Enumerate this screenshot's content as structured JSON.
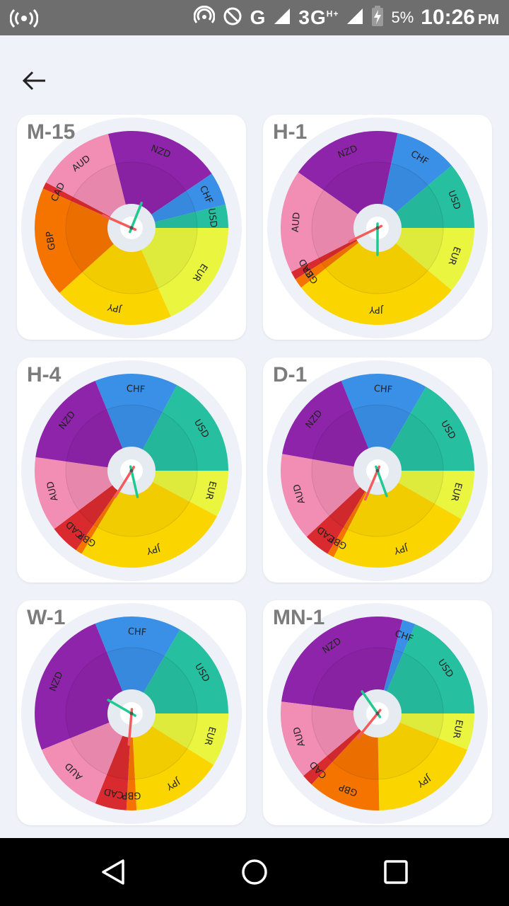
{
  "status_bar": {
    "network_type": "G",
    "data_type": "3G",
    "data_sup": "H+",
    "battery": "5%",
    "time": "10:26",
    "ampm": "PM"
  },
  "colors": {
    "NZD": "#8e24aa",
    "CHF": "#3a8fe6",
    "USD": "#26bfa0",
    "EUR": "#e9f53f",
    "JPY": "#fbd500",
    "GBP": "#f57400",
    "CAD": "#d82a2f",
    "AUD": "#f28db4"
  },
  "cards": [
    {
      "title": "M-15",
      "segments": [
        {
          "currency": "NZD",
          "start": 346,
          "end": 56
        },
        {
          "currency": "CHF",
          "start": 56,
          "end": 76
        },
        {
          "currency": "USD",
          "start": 76,
          "end": 90
        },
        {
          "currency": "EUR",
          "start": 90,
          "end": 156
        },
        {
          "currency": "JPY",
          "start": 156,
          "end": 228
        },
        {
          "currency": "GBP",
          "start": 228,
          "end": 294
        },
        {
          "currency": "CAD",
          "start": 294,
          "end": 298
        },
        {
          "currency": "AUD",
          "start": 298,
          "end": 346
        }
      ],
      "needle_green": 22,
      "needle_red": 294
    },
    {
      "title": "H-1",
      "segments": [
        {
          "currency": "NZD",
          "start": 305,
          "end": 12
        },
        {
          "currency": "CHF",
          "start": 12,
          "end": 50
        },
        {
          "currency": "USD",
          "start": 50,
          "end": 90
        },
        {
          "currency": "EUR",
          "start": 90,
          "end": 130
        },
        {
          "currency": "JPY",
          "start": 130,
          "end": 232
        },
        {
          "currency": "GBP",
          "start": 232,
          "end": 238
        },
        {
          "currency": "CAD",
          "start": 238,
          "end": 243
        },
        {
          "currency": "AUD",
          "start": 243,
          "end": 305
        }
      ],
      "needle_green": 180,
      "needle_red": 244
    },
    {
      "title": "H-4",
      "segments": [
        {
          "currency": "CHF",
          "start": 338,
          "end": 28
        },
        {
          "currency": "USD",
          "start": 28,
          "end": 90
        },
        {
          "currency": "EUR",
          "start": 90,
          "end": 118
        },
        {
          "currency": "JPY",
          "start": 118,
          "end": 211
        },
        {
          "currency": "GBP",
          "start": 211,
          "end": 215
        },
        {
          "currency": "CAD",
          "start": 215,
          "end": 233
        },
        {
          "currency": "AUD",
          "start": 233,
          "end": 278
        },
        {
          "currency": "NZD",
          "start": 278,
          "end": 338
        }
      ],
      "needle_green": 167,
      "needle_red": 212
    },
    {
      "title": "D-1",
      "segments": [
        {
          "currency": "CHF",
          "start": 338,
          "end": 30
        },
        {
          "currency": "USD",
          "start": 30,
          "end": 90
        },
        {
          "currency": "EUR",
          "start": 90,
          "end": 120
        },
        {
          "currency": "JPY",
          "start": 120,
          "end": 207
        },
        {
          "currency": "GBP",
          "start": 207,
          "end": 211
        },
        {
          "currency": "CAD",
          "start": 211,
          "end": 227
        },
        {
          "currency": "AUD",
          "start": 227,
          "end": 280
        },
        {
          "currency": "NZD",
          "start": 280,
          "end": 338
        }
      ],
      "needle_green": 160,
      "needle_red": 203
    },
    {
      "title": "W-1",
      "segments": [
        {
          "currency": "CHF",
          "start": 338,
          "end": 30
        },
        {
          "currency": "USD",
          "start": 30,
          "end": 90
        },
        {
          "currency": "EUR",
          "start": 90,
          "end": 122
        },
        {
          "currency": "JPY",
          "start": 122,
          "end": 177
        },
        {
          "currency": "GBP",
          "start": 177,
          "end": 183
        },
        {
          "currency": "CAD",
          "start": 183,
          "end": 202
        },
        {
          "currency": "AUD",
          "start": 202,
          "end": 248
        },
        {
          "currency": "NZD",
          "start": 248,
          "end": 338
        }
      ],
      "needle_green": 300,
      "needle_red": 185
    },
    {
      "title": "MN-1",
      "segments": [
        {
          "currency": "NZD",
          "start": 277,
          "end": 15
        },
        {
          "currency": "CHF",
          "start": 15,
          "end": 23
        },
        {
          "currency": "USD",
          "start": 23,
          "end": 90
        },
        {
          "currency": "EUR",
          "start": 90,
          "end": 112
        },
        {
          "currency": "JPY",
          "start": 112,
          "end": 179
        },
        {
          "currency": "GBP",
          "start": 179,
          "end": 223
        },
        {
          "currency": "CAD",
          "start": 223,
          "end": 230
        },
        {
          "currency": "AUD",
          "start": 230,
          "end": 277
        }
      ],
      "needle_green": 325,
      "needle_red": 219
    }
  ]
}
